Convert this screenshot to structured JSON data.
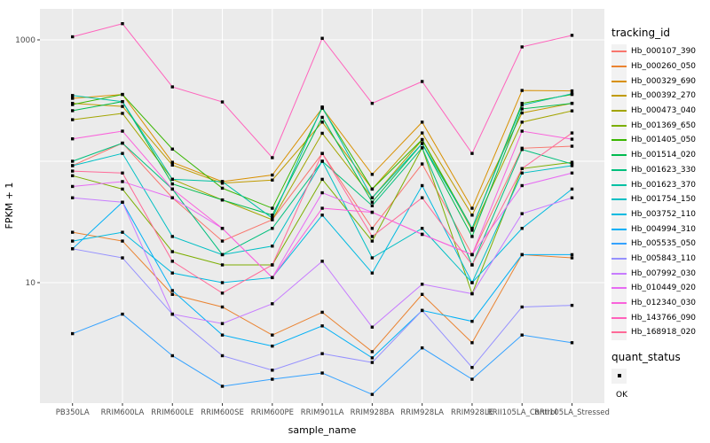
{
  "figure": {
    "background": "#FFFFFF",
    "panel_background": "#EBEBEB",
    "gridline_color": "#FFFFFF",
    "axis_text_color": "#4D4D4D",
    "tick_mark_color": "#333333",
    "point_color": "#000000"
  },
  "legend": {
    "tracking_title": "tracking_id",
    "quant_title": "quant_status",
    "quant_items": [
      {
        "label": "OK",
        "shape": "square",
        "color": "#000000"
      }
    ]
  },
  "chart_data": {
    "type": "line",
    "title": "",
    "xlabel": "sample_name",
    "ylabel": "FPKM + 1",
    "y_scale": "log10",
    "ylim": [
      1,
      1800
    ],
    "y_breaks_labeled": [
      1000,
      10
    ],
    "y_gridlines_unlabeled": [
      100
    ],
    "grid": true,
    "legend_position": "right",
    "point_marker": {
      "shape": "square",
      "color": "#000000",
      "size": 3.4
    },
    "categories": [
      "PB350LA",
      "RRIM600LA",
      "RRIM600LE",
      "RRIM600SE",
      "RRIM600PE",
      "RRIM901LA",
      "RRIM928BA",
      "RRIM928LA",
      "RRIM928LE",
      "RRII105LA_Control",
      "RRII105LA_Stressed"
    ],
    "series": [
      {
        "name": "Hb_000107_390",
        "color": "#F8766D",
        "values": [
          92,
          141,
          50,
          22,
          33,
          116,
          28,
          95,
          17,
          128,
          133
        ]
      },
      {
        "name": "Hb_000260_050",
        "color": "#EA8331",
        "values": [
          26,
          22,
          8,
          6.3,
          3.7,
          5.7,
          2.7,
          8,
          3.2,
          17,
          16
        ]
      },
      {
        "name": "Hb_000329_690",
        "color": "#D89000",
        "values": [
          330,
          355,
          98,
          68,
          77,
          274,
          78,
          210,
          41,
          383,
          380
        ]
      },
      {
        "name": "Hb_000392_270",
        "color": "#C09B00",
        "values": [
          300,
          283,
          93,
          66,
          70,
          210,
          59,
          171,
          36,
          250,
          300
        ]
      },
      {
        "name": "Hb_000473_040",
        "color": "#A3A500",
        "values": [
          220,
          248,
          71,
          48,
          33,
          170,
          50,
          150,
          27,
          210,
          260
        ]
      },
      {
        "name": "Hb_001369_650",
        "color": "#7CAE00",
        "values": [
          76,
          59,
          18,
          14,
          14,
          71,
          22,
          129,
          8.1,
          87,
          98
        ]
      },
      {
        "name": "Hb_001405_050",
        "color": "#39B600",
        "values": [
          293,
          355,
          126,
          60,
          41,
          274,
          59,
          151,
          28,
          300,
          355
        ]
      },
      {
        "name": "Hb_001514_020",
        "color": "#00BB4E",
        "values": [
          261,
          310,
          65,
          48,
          36,
          230,
          46,
          140,
          24,
          270,
          300
        ]
      },
      {
        "name": "Hb_001623_330",
        "color": "#00BF7D",
        "values": [
          100,
          141,
          59,
          17,
          28,
          100,
          43,
          129,
          14,
          125,
          95
        ]
      },
      {
        "name": "Hb_001623_370",
        "color": "#00C1A3",
        "values": [
          348,
          310,
          71,
          68,
          34,
          280,
          50,
          140,
          28,
          290,
          360
        ]
      },
      {
        "name": "Hb_001754_150",
        "color": "#00BFC4",
        "values": [
          92,
          116,
          24,
          17,
          20,
          100,
          16,
          28,
          10,
          80,
          92
        ]
      },
      {
        "name": "Hb_003752_110",
        "color": "#00BAE0",
        "values": [
          22,
          26,
          12,
          10,
          11,
          36,
          12,
          63,
          10,
          28,
          59
        ]
      },
      {
        "name": "Hb_004994_310",
        "color": "#00B0F6",
        "values": [
          19,
          46,
          8.6,
          3.7,
          3.0,
          4.4,
          2.4,
          5.9,
          4.8,
          17,
          17
        ]
      },
      {
        "name": "Hb_005535_050",
        "color": "#35A2FF",
        "values": [
          3.8,
          5.5,
          2.5,
          1.4,
          1.6,
          1.8,
          1.2,
          2.9,
          1.6,
          3.7,
          3.2
        ]
      },
      {
        "name": "Hb_005843_110",
        "color": "#9590FF",
        "values": [
          19,
          16,
          5.5,
          2.5,
          1.9,
          2.6,
          2.2,
          5.9,
          2.0,
          6.3,
          6.5
        ]
      },
      {
        "name": "Hb_007992_030",
        "color": "#C77CFF",
        "values": [
          50,
          46,
          5.5,
          4.6,
          6.7,
          15,
          4.3,
          9.7,
          8.1,
          37,
          50
        ]
      },
      {
        "name": "Hb_010449_020",
        "color": "#E76BF3",
        "values": [
          62,
          68,
          50,
          28,
          11,
          55,
          38,
          25,
          17,
          63,
          80
        ]
      },
      {
        "name": "Hb_012340_030",
        "color": "#FA62DB",
        "values": [
          153,
          177,
          59,
          28,
          11,
          41,
          38,
          25,
          17,
          177,
          152
        ]
      },
      {
        "name": "Hb_143766_090",
        "color": "#FF62BC",
        "values": [
          1060,
          1360,
          410,
          308,
          107,
          1030,
          300,
          454,
          116,
          875,
          1090
        ]
      },
      {
        "name": "Hb_168918_020",
        "color": "#FF6A98",
        "values": [
          83,
          80,
          15,
          8.2,
          14,
          116,
          24,
          50,
          14,
          87,
          171
        ]
      }
    ]
  }
}
